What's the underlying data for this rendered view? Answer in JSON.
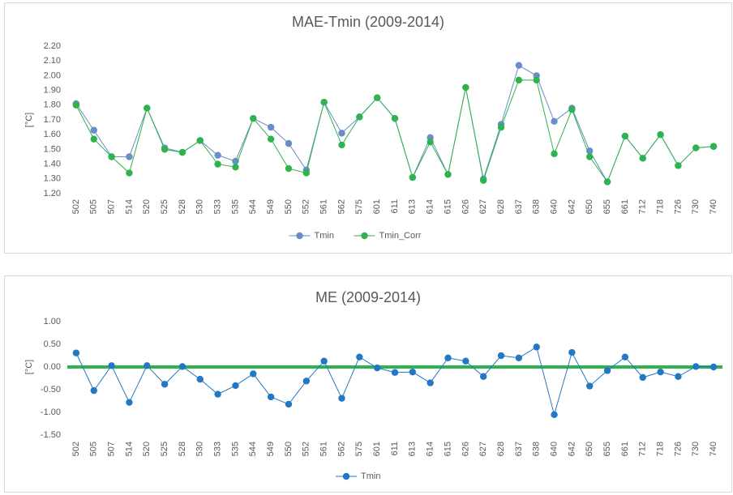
{
  "chart_data": [
    {
      "type": "line",
      "title": "MAE-Tmin (2009-2014)",
      "y_label": "[°C]",
      "categories": [
        "502",
        "505",
        "507",
        "514",
        "520",
        "525",
        "528",
        "530",
        "533",
        "535",
        "544",
        "549",
        "550",
        "552",
        "561",
        "562",
        "575",
        "601",
        "611",
        "613",
        "614",
        "615",
        "626",
        "627",
        "628",
        "637",
        "638",
        "640",
        "642",
        "650",
        "655",
        "661",
        "712",
        "718",
        "726",
        "730",
        "740"
      ],
      "series": [
        {
          "name": "Tmin",
          "color": "#6a8cc7",
          "values": [
            1.81,
            1.63,
            1.45,
            1.45,
            1.78,
            1.51,
            1.48,
            1.56,
            1.46,
            1.42,
            1.71,
            1.65,
            1.54,
            1.36,
            1.82,
            1.61,
            1.72,
            1.85,
            1.71,
            1.31,
            1.58,
            1.33,
            1.92,
            1.3,
            1.67,
            2.07,
            2.0,
            1.69,
            1.78,
            1.49,
            1.28,
            1.59,
            1.44,
            1.6,
            1.39,
            1.51,
            1.52
          ]
        },
        {
          "name": "Tmin_Corr",
          "color": "#2eb34f",
          "values": [
            1.8,
            1.57,
            1.45,
            1.34,
            1.78,
            1.5,
            1.48,
            1.56,
            1.4,
            1.38,
            1.71,
            1.57,
            1.37,
            1.34,
            1.82,
            1.53,
            1.72,
            1.85,
            1.71,
            1.31,
            1.55,
            1.33,
            1.92,
            1.29,
            1.65,
            1.97,
            1.97,
            1.47,
            1.77,
            1.45,
            1.28,
            1.59,
            1.44,
            1.6,
            1.39,
            1.51,
            1.52
          ]
        }
      ],
      "ylim": [
        1.2,
        2.2
      ],
      "yticks": [
        {
          "value": 1.2,
          "label": "1.20"
        },
        {
          "value": 1.3,
          "label": "1.30"
        },
        {
          "value": 1.4,
          "label": "1.40"
        },
        {
          "value": 1.5,
          "label": "1.50"
        },
        {
          "value": 1.6,
          "label": "1.60"
        },
        {
          "value": 1.7,
          "label": "1.70"
        },
        {
          "value": 1.8,
          "label": "1.80"
        },
        {
          "value": 1.9,
          "label": "1.90"
        },
        {
          "value": 2.0,
          "label": "2.00"
        },
        {
          "value": 2.1,
          "label": "2.10"
        },
        {
          "value": 2.2,
          "label": "2.20"
        }
      ],
      "legend": "bottom"
    },
    {
      "type": "line",
      "title": "ME (2009-2014)",
      "y_label": "[°C]",
      "categories": [
        "502",
        "505",
        "507",
        "514",
        "520",
        "525",
        "528",
        "530",
        "533",
        "535",
        "544",
        "549",
        "550",
        "552",
        "561",
        "562",
        "575",
        "601",
        "611",
        "613",
        "614",
        "615",
        "626",
        "627",
        "628",
        "637",
        "638",
        "640",
        "642",
        "650",
        "655",
        "661",
        "712",
        "718",
        "726",
        "730",
        "740"
      ],
      "series": [
        {
          "name": "Tmin",
          "color": "#2278c4",
          "values": [
            0.31,
            -0.52,
            0.03,
            -0.78,
            0.03,
            -0.38,
            0.01,
            -0.27,
            -0.6,
            -0.41,
            -0.15,
            -0.66,
            -0.82,
            -0.31,
            0.13,
            -0.69,
            0.22,
            -0.02,
            -0.12,
            -0.11,
            -0.35,
            0.2,
            0.13,
            -0.21,
            0.25,
            0.2,
            0.44,
            -1.05,
            0.32,
            -0.42,
            -0.08,
            0.22,
            -0.23,
            -0.11,
            -0.21,
            0.01,
            0.0
          ]
        }
      ],
      "ylim": [
        -1.5,
        1.0
      ],
      "yticks": [
        {
          "value": -1.5,
          "label": "-1.50"
        },
        {
          "value": -1.0,
          "label": "-1.00"
        },
        {
          "value": -0.5,
          "label": "-0.50"
        },
        {
          "value": 0,
          "label": "0.00"
        },
        {
          "value": 0.5,
          "label": "0.50"
        },
        {
          "value": 1.0,
          "label": "1.00"
        }
      ],
      "reference_line": {
        "value": 0,
        "color": "#2eb34f"
      },
      "legend": "bottom"
    }
  ]
}
